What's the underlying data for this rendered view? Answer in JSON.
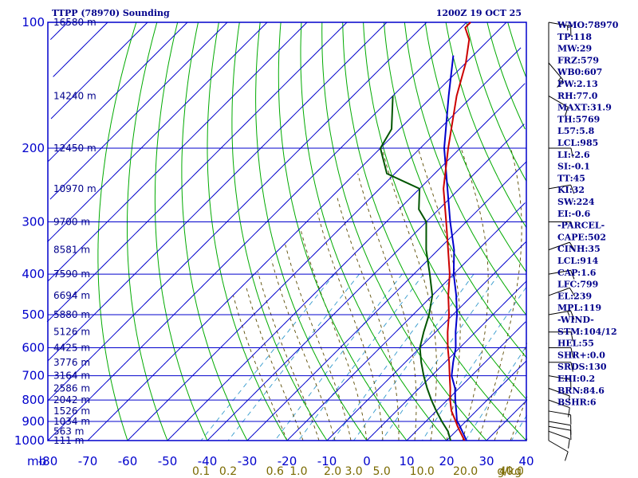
{
  "chart_data": {
    "type": "skew-t",
    "title": "TTPP (78970) Sounding",
    "valid_time": "1200Z 19 OCT 25",
    "pressure_unit": "mb",
    "pressure_levels": [
      100,
      200,
      300,
      400,
      500,
      600,
      700,
      800,
      900,
      1000
    ],
    "height_levels": [
      {
        "p": 100,
        "label": "16580 m"
      },
      {
        "p": 150,
        "label": "14240 m"
      },
      {
        "p": 200,
        "label": "12450 m"
      },
      {
        "p": 250,
        "label": "10970 m"
      },
      {
        "p": 300,
        "label": "9700 m"
      },
      {
        "p": 350,
        "label": "8581 m"
      },
      {
        "p": 400,
        "label": "7590 m"
      },
      {
        "p": 450,
        "label": "6694 m"
      },
      {
        "p": 500,
        "label": "5880 m"
      },
      {
        "p": 550,
        "label": "5126 m"
      },
      {
        "p": 600,
        "label": "4425 m"
      },
      {
        "p": 650,
        "label": "3776 m"
      },
      {
        "p": 700,
        "label": "3164 m"
      },
      {
        "p": 750,
        "label": "2586 m"
      },
      {
        "p": 800,
        "label": "2042 m"
      },
      {
        "p": 850,
        "label": "1526 m"
      },
      {
        "p": 900,
        "label": "1034 m"
      },
      {
        "p": 950,
        "label": "563 m"
      },
      {
        "p": 1000,
        "label": "111 m"
      }
    ],
    "temperature_ticks": [
      "-80",
      "-70",
      "-60",
      "-50",
      "-40",
      "-30",
      "-20",
      "-10",
      "0",
      "10",
      "20",
      "30",
      "40"
    ],
    "mixing_ratio_ticks": [
      "0.1",
      "0.2",
      "0.6",
      "1.0",
      "2.0",
      "3.0",
      "5.0",
      "10.0",
      "20.0",
      "40.0"
    ],
    "mixing_ratio_unit": "g/kg",
    "temperature_profile": [
      [
        1008,
        26
      ],
      [
        1000,
        24.5
      ],
      [
        950,
        21
      ],
      [
        925,
        19.2
      ],
      [
        900,
        17.5
      ],
      [
        850,
        13.8
      ],
      [
        800,
        10.7
      ],
      [
        750,
        7.8
      ],
      [
        700,
        4.5
      ],
      [
        650,
        1
      ],
      [
        600,
        -3
      ],
      [
        550,
        -7
      ],
      [
        500,
        -11
      ],
      [
        450,
        -16
      ],
      [
        400,
        -21
      ],
      [
        350,
        -27.5
      ],
      [
        300,
        -35
      ],
      [
        250,
        -44
      ],
      [
        200,
        -53
      ],
      [
        150,
        -64
      ],
      [
        125,
        -70
      ],
      [
        110,
        -75
      ],
      [
        103,
        -79
      ],
      [
        100,
        -79
      ]
    ],
    "dewpoint_profile": [
      [
        1008,
        22.5
      ],
      [
        1000,
        21
      ],
      [
        950,
        18
      ],
      [
        900,
        14
      ],
      [
        850,
        10
      ],
      [
        800,
        6
      ],
      [
        750,
        2
      ],
      [
        700,
        -2
      ],
      [
        650,
        -6
      ],
      [
        600,
        -10
      ],
      [
        550,
        -13
      ],
      [
        500,
        -16
      ],
      [
        450,
        -20
      ],
      [
        400,
        -26
      ],
      [
        350,
        -33
      ],
      [
        300,
        -40
      ],
      [
        280,
        -45
      ],
      [
        250,
        -50
      ],
      [
        230,
        -62
      ],
      [
        200,
        -70
      ],
      [
        180,
        -72
      ],
      [
        150,
        -80
      ]
    ],
    "parcel_profile": [
      [
        1008,
        26
      ],
      [
        1000,
        25
      ],
      [
        914,
        19
      ],
      [
        900,
        17.8
      ],
      [
        850,
        15
      ],
      [
        800,
        12
      ],
      [
        750,
        9
      ],
      [
        700,
        5
      ],
      [
        650,
        2
      ],
      [
        600,
        -1
      ],
      [
        550,
        -5
      ],
      [
        500,
        -9
      ],
      [
        450,
        -14
      ],
      [
        400,
        -20
      ],
      [
        350,
        -26
      ],
      [
        300,
        -34
      ],
      [
        250,
        -43
      ],
      [
        200,
        -54
      ],
      [
        150,
        -66
      ],
      [
        120,
        -75
      ]
    ],
    "winds": [
      {
        "p": 1000,
        "dir": 120,
        "spd": 10
      },
      {
        "p": 950,
        "dir": 110,
        "spd": 10
      },
      {
        "p": 925,
        "dir": 100,
        "spd": 10
      },
      {
        "p": 900,
        "dir": 100,
        "spd": 10
      },
      {
        "p": 850,
        "dir": 100,
        "spd": 10
      },
      {
        "p": 800,
        "dir": 110,
        "spd": 10
      },
      {
        "p": 750,
        "dir": 110,
        "spd": 5
      },
      {
        "p": 700,
        "dir": 100,
        "spd": 10
      },
      {
        "p": 650,
        "dir": 90,
        "spd": 10
      },
      {
        "p": 600,
        "dir": 90,
        "spd": 10
      },
      {
        "p": 550,
        "dir": 90,
        "spd": 10
      },
      {
        "p": 500,
        "dir": 80,
        "spd": 15
      },
      {
        "p": 450,
        "dir": 70,
        "spd": 10
      },
      {
        "p": 400,
        "dir": 80,
        "spd": 10
      },
      {
        "p": 350,
        "dir": 70,
        "spd": 10
      },
      {
        "p": 300,
        "dir": 90,
        "spd": 5
      },
      {
        "p": 250,
        "dir": 80,
        "spd": 10
      },
      {
        "p": 200,
        "dir": 90,
        "spd": 10
      },
      {
        "p": 150,
        "dir": 120,
        "spd": 10
      },
      {
        "p": 125,
        "dir": 140,
        "spd": 15
      },
      {
        "p": 100,
        "dir": 100,
        "spd": 15
      }
    ],
    "indices": [
      "WMO:78970",
      "TP:118",
      "MW:29",
      "FRZ:579",
      "WB0:607",
      "PW:2.13",
      "RH:77.0",
      "MAXT:31.9",
      "TH:5769",
      "L57:5.8",
      "LCL:985",
      "LI:-2.6",
      "SI:-0.1",
      "TT:45",
      "KI:32",
      "SW:224",
      "EI:-0.6",
      "-PARCEL-",
      "CAPE:502",
      "CINH:35",
      "LCL:914",
      "CAP:1.6",
      "LFC:799",
      "EL:239",
      "MPL:119",
      "-WIND-",
      "STM:104/12",
      "HEL:55",
      "SHR+:0.0",
      "SRDS:130",
      "EHI:0.2",
      "BRN:84.6",
      "BSHR:6"
    ],
    "colors": {
      "isobar": "#0000cc",
      "isotherm": "#0000cc",
      "dry_adiabat": "#00aa00",
      "moist_adiabat": "#5a4a00",
      "mixing_ratio": "#3399cc",
      "temperature": "#cc0000",
      "dewpoint": "#005500",
      "parcel": "#0000cc",
      "text": "#00008b"
    }
  }
}
